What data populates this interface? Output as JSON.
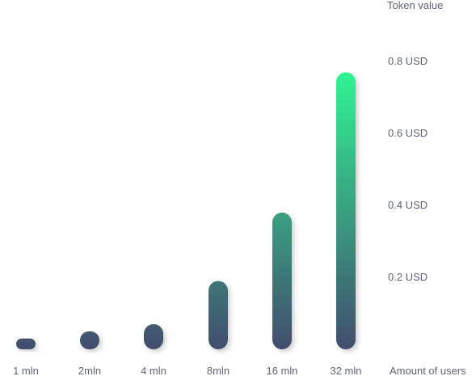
{
  "chart_data": {
    "type": "bar",
    "categories": [
      "1 mln",
      "2mln",
      "4 mln",
      "8mln",
      "16 mln",
      "32 mln"
    ],
    "values": [
      0.03,
      0.05,
      0.07,
      0.19,
      0.38,
      0.77
    ],
    "ylabel": "Token value",
    "xlabel": "Amount of users",
    "yticks": [
      "0.2 USD",
      "0.4 USD",
      "0.6 USD",
      "0.8 USD"
    ],
    "ytick_values": [
      0.2,
      0.4,
      0.6,
      0.8
    ],
    "ylim": [
      0,
      0.8
    ],
    "grid": false,
    "colors": {
      "bar_bottom": "#434d6e",
      "bar_top": "#2ff393",
      "text": "#5e6577"
    }
  }
}
